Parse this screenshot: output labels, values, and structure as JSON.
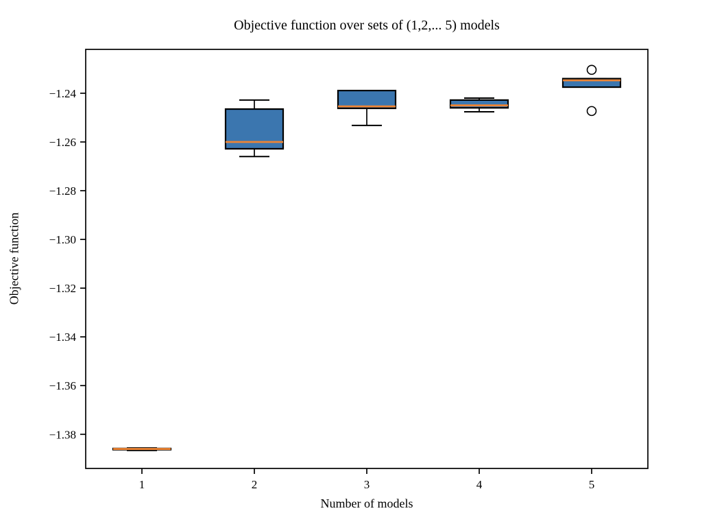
{
  "figure": {
    "title": "Objective function over sets of (1,2,... 5) models",
    "xlabel": "Number of models",
    "ylabel": "Objective function"
  },
  "chart_data": {
    "type": "boxplot",
    "title": "Objective function over sets of (1,2,... 5) models",
    "xlabel": "Number of models",
    "ylabel": "Objective function",
    "grid": false,
    "legend": null,
    "xlim": [
      0.5,
      5.5
    ],
    "ylim": [
      -1.394,
      -1.222
    ],
    "xticks": [
      {
        "value": 1,
        "label": "1"
      },
      {
        "value": 2,
        "label": "2"
      },
      {
        "value": 3,
        "label": "3"
      },
      {
        "value": 4,
        "label": "4"
      },
      {
        "value": 5,
        "label": "5"
      }
    ],
    "yticks": [
      {
        "value": -1.24,
        "label": "−1.24"
      },
      {
        "value": -1.26,
        "label": "−1.26"
      },
      {
        "value": -1.28,
        "label": "−1.28"
      },
      {
        "value": -1.3,
        "label": "−1.30"
      },
      {
        "value": -1.32,
        "label": "−1.32"
      },
      {
        "value": -1.34,
        "label": "−1.34"
      },
      {
        "value": -1.36,
        "label": "−1.36"
      },
      {
        "value": -1.38,
        "label": "−1.38"
      }
    ],
    "boxes": [
      {
        "position": 1,
        "whisker_low": -1.3866,
        "q1": -1.3863,
        "median": -1.386,
        "q3": -1.3858,
        "whisker_high": -1.3856,
        "fliers": []
      },
      {
        "position": 2,
        "whisker_low": -1.266,
        "q1": -1.2628,
        "median": -1.26,
        "q3": -1.2465,
        "whisker_high": -1.2428,
        "fliers": []
      },
      {
        "position": 3,
        "whisker_low": -1.2532,
        "q1": -1.2462,
        "median": -1.2454,
        "q3": -1.2389,
        "whisker_high": -1.2389,
        "fliers": []
      },
      {
        "position": 4,
        "whisker_low": -1.2476,
        "q1": -1.246,
        "median": -1.245,
        "q3": -1.2428,
        "whisker_high": -1.242,
        "fliers": []
      },
      {
        "position": 5,
        "whisker_low": -1.2375,
        "q1": -1.2375,
        "median": -1.2347,
        "q3": -1.234,
        "whisker_high": -1.234,
        "fliers": [
          -1.2304,
          -1.2473
        ]
      }
    ],
    "style": {
      "box_fill": "#3b76af",
      "box_edge": "#000000",
      "median_color": "#ee8433",
      "whisker_color": "#000000",
      "flier_edge": "#000000",
      "spine_color": "#000000",
      "background": "#ffffff"
    }
  }
}
